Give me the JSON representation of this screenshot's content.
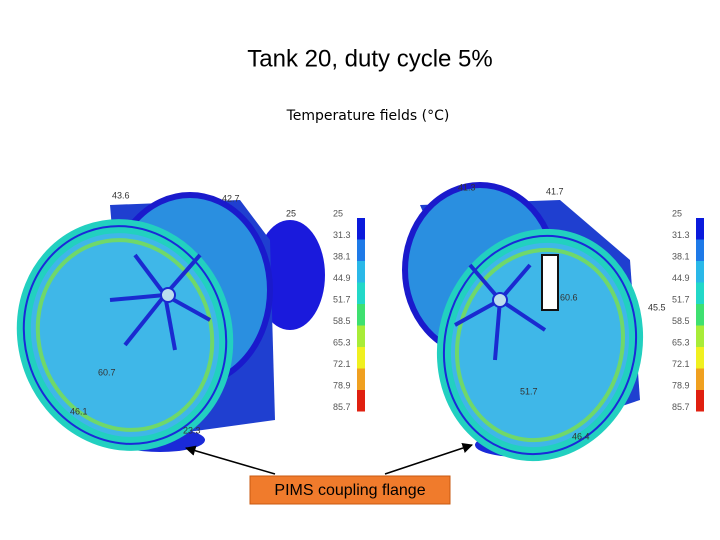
{
  "title": "Tank 20, duty cycle 5%",
  "subtitle": "Temperature fields (°C)",
  "callout": "PIMS coupling flange",
  "legends": [
    {
      "labels": [
        "25",
        "31.3",
        "38.1",
        "44.9",
        "51.7",
        "58.5",
        "65.3",
        "72.1",
        "78.9",
        "85.7"
      ]
    },
    {
      "labels": [
        "25",
        "31.3",
        "38.1",
        "44.9",
        "51.7",
        "58.5",
        "65.3",
        "72.1",
        "78.9",
        "85.7"
      ]
    }
  ],
  "left_view_labels": [
    "43.6",
    "42.7",
    "25",
    "60.7",
    "46.1",
    "23.3"
  ],
  "right_view_labels": [
    "41.3",
    "41.7",
    "60.6",
    "45.5",
    "51.7",
    "46.4"
  ]
}
